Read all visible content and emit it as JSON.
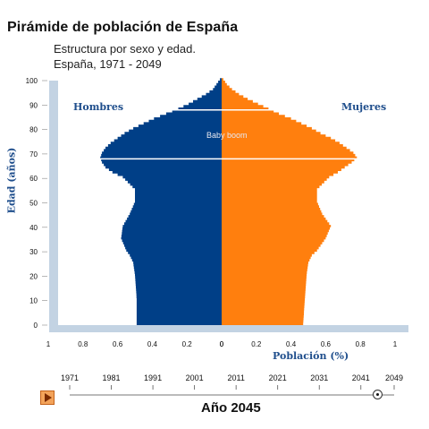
{
  "title": "Pirámide de población de España",
  "subtitle_line1": "Estructura por sexo y edad.",
  "subtitle_line2": "España, 1971 - 2049",
  "slider": {
    "years": [
      "1971",
      "1981",
      "1991",
      "2001",
      "2011",
      "2021",
      "2031",
      "2041",
      "2049"
    ],
    "current_label": "Año 2045",
    "current_year": 2045
  },
  "colors": {
    "hombres": "#003f87",
    "mujeres": "#ff7f0e",
    "axis_bg": "#c3d3e3",
    "label": "#1f4e8c"
  },
  "chart_data": {
    "type": "bar",
    "title": "",
    "xlabel": "Población (%)",
    "ylabel": "Edad (años)",
    "legend": [
      "Hombres",
      "Mujeres"
    ],
    "annotation": "Baby boom",
    "annotation_age": 75,
    "reference_lines_age": [
      68,
      88
    ],
    "x_ticks_left": [
      "1",
      "0.8",
      "0.6",
      "0.4",
      "0.2",
      "0"
    ],
    "x_ticks_right": [
      "0",
      "0.2",
      "0.4",
      "0.6",
      "0.8",
      "1"
    ],
    "y_ticks": [
      "0",
      "10",
      "20",
      "30",
      "40",
      "50",
      "60",
      "70",
      "80",
      "90",
      "100"
    ],
    "xlim": [
      0,
      1
    ],
    "ylim": [
      0,
      100
    ],
    "series": [
      {
        "name": "Hombres",
        "ages": [
          0,
          10,
          20,
          25,
          28,
          30,
          35,
          40,
          45,
          50,
          55,
          60,
          62,
          64,
          66,
          68,
          70,
          72,
          74,
          76,
          78,
          80,
          82,
          84,
          86,
          88,
          90,
          92,
          94,
          96,
          98,
          100
        ],
        "values": [
          0.49,
          0.49,
          0.5,
          0.51,
          0.53,
          0.55,
          0.58,
          0.57,
          0.53,
          0.5,
          0.5,
          0.57,
          0.63,
          0.67,
          0.69,
          0.7,
          0.69,
          0.67,
          0.64,
          0.6,
          0.56,
          0.51,
          0.45,
          0.39,
          0.32,
          0.25,
          0.19,
          0.14,
          0.09,
          0.05,
          0.03,
          0.01
        ]
      },
      {
        "name": "Mujeres",
        "ages": [
          0,
          10,
          20,
          25,
          28,
          30,
          35,
          40,
          45,
          50,
          55,
          60,
          62,
          64,
          66,
          68,
          70,
          72,
          74,
          76,
          78,
          80,
          82,
          84,
          86,
          88,
          90,
          92,
          94,
          96,
          98,
          100
        ],
        "values": [
          0.47,
          0.48,
          0.49,
          0.5,
          0.52,
          0.55,
          0.6,
          0.63,
          0.58,
          0.55,
          0.55,
          0.62,
          0.67,
          0.71,
          0.75,
          0.78,
          0.76,
          0.72,
          0.68,
          0.63,
          0.57,
          0.52,
          0.46,
          0.4,
          0.33,
          0.27,
          0.21,
          0.15,
          0.1,
          0.06,
          0.03,
          0.01
        ]
      }
    ]
  }
}
